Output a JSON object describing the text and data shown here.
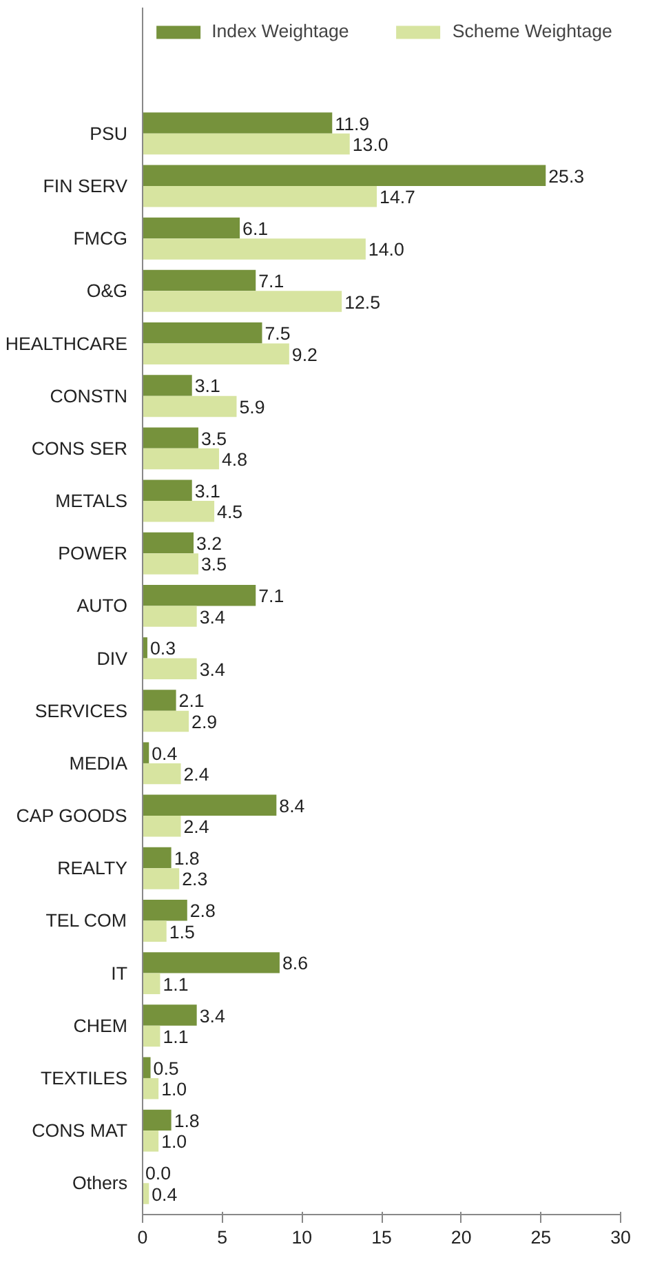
{
  "chart_data": {
    "type": "bar",
    "orientation": "horizontal",
    "categories": [
      "PSU",
      "FIN SERV",
      "FMCG",
      "O&G",
      "HEALTHCARE",
      "CONSTN",
      "CONS SER",
      "METALS",
      "POWER",
      "AUTO",
      "DIV",
      "SERVICES",
      "MEDIA",
      "CAP GOODS",
      "REALTY",
      "TEL COM",
      "IT",
      "CHEM",
      "TEXTILES",
      "CONS MAT",
      "Others"
    ],
    "series": [
      {
        "name": "Index Weightage",
        "color": "#76923c",
        "values": [
          11.9,
          25.3,
          6.1,
          7.1,
          7.5,
          3.1,
          3.5,
          3.1,
          3.2,
          7.1,
          0.3,
          2.1,
          0.4,
          8.4,
          1.8,
          2.8,
          8.6,
          3.4,
          0.5,
          1.8,
          0
        ],
        "value_labels": [
          "11.9",
          "25.3",
          "6.1",
          "7.1",
          "7.5",
          "3.1",
          "3.5",
          "3.1",
          "3.2",
          "7.1",
          "0.3",
          "2.1",
          "0.4",
          "8.4",
          "1.8",
          "2.8",
          "8.6",
          "3.4",
          "0.5",
          "1.8",
          "0.0"
        ]
      },
      {
        "name": "Scheme Weightage",
        "color": "#d7e4a0",
        "values": [
          13,
          14.7,
          14,
          12.5,
          9.2,
          5.9,
          4.8,
          4.5,
          3.5,
          3.4,
          3.4,
          2.9,
          2.4,
          2.4,
          2.3,
          1.5,
          1.1,
          1.1,
          1,
          1,
          0.4
        ],
        "value_labels": [
          "13.0",
          "14.7",
          "14.0",
          "12.5",
          "9.2",
          "5.9",
          "4.8",
          "4.5",
          "3.5",
          "3.4",
          "3.4",
          "2.9",
          "2.4",
          "2.4",
          "2.3",
          "1.5",
          "1.1",
          "1.1",
          "1.0",
          "1.0",
          "0.4"
        ]
      }
    ],
    "xlim": [
      0,
      30
    ],
    "xticks": [
      0,
      5,
      10,
      15,
      20,
      25,
      30
    ],
    "grid": false,
    "legend": "top"
  }
}
